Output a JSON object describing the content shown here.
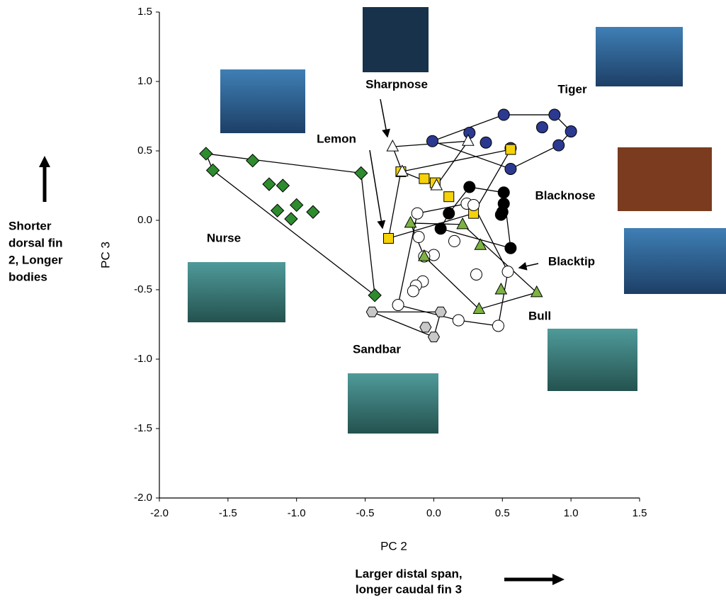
{
  "chart_data": {
    "type": "scatter",
    "xlabel": "PC 2",
    "ylabel": "PC 3",
    "xlim": [
      -2.0,
      1.5
    ],
    "ylim": [
      -2.0,
      1.5
    ],
    "xticks": [
      {
        "value": -2.0,
        "label": "-2.0"
      },
      -1.5,
      {
        "value": -1.0,
        "label": "-1.0"
      },
      -0.5,
      {
        "value": 0.0,
        "label": "0.0"
      },
      0.5,
      {
        "value": 1.0,
        "label": "1.0"
      },
      1.5
    ],
    "yticks": [
      {
        "value": -2.0,
        "label": "-2.0"
      },
      -1.5,
      {
        "value": -1.0,
        "label": "-1.0"
      },
      -0.5,
      {
        "value": 0.0,
        "label": "0.0"
      },
      0.5,
      {
        "value": 1.0,
        "label": "1.0"
      },
      1.5
    ],
    "grid": false,
    "series": [
      {
        "name": "Nurse",
        "marker": "diamond",
        "color": "#2e8b2e",
        "x": [
          -1.66,
          -1.61,
          -1.32,
          -1.2,
          -1.1,
          -1.14,
          -1.0,
          -0.88,
          -1.04,
          -0.53,
          -0.43
        ],
        "values": [
          0.48,
          0.36,
          0.43,
          0.26,
          0.25,
          0.07,
          0.11,
          0.06,
          0.01,
          0.34,
          -0.54
        ]
      },
      {
        "name": "Tiger",
        "marker": "circle",
        "color": "#2b3990",
        "x": [
          -0.01,
          0.26,
          0.38,
          0.51,
          0.56,
          0.56,
          0.79,
          0.88,
          0.91,
          1.0
        ],
        "values": [
          0.57,
          0.63,
          0.56,
          0.76,
          0.37,
          0.52,
          0.67,
          0.76,
          0.54,
          0.64
        ]
      },
      {
        "name": "Lemon",
        "marker": "square",
        "color": "#f5d20a",
        "x": [
          0.56,
          -0.24,
          -0.07,
          0.01,
          0.11,
          0.29,
          -0.33
        ],
        "values": [
          0.51,
          0.35,
          0.3,
          0.27,
          0.17,
          0.05,
          -0.13
        ]
      },
      {
        "name": "Sharpnose",
        "marker": "triangle",
        "color": "#ffffff",
        "x": [
          -0.3,
          -0.23,
          0.02,
          0.25
        ],
        "values": [
          0.53,
          0.35,
          0.25,
          0.57
        ]
      },
      {
        "name": "Blacknose",
        "marker": "circle",
        "color": "#000000",
        "x": [
          0.26,
          0.51,
          0.51,
          0.5,
          0.49,
          0.11,
          0.05,
          0.56
        ],
        "values": [
          0.24,
          0.2,
          0.12,
          0.06,
          0.04,
          0.05,
          -0.06,
          -0.2
        ]
      },
      {
        "name": "Blacktip",
        "marker": "circle",
        "color": "#ffffff",
        "x": [
          -0.12,
          0.24,
          0.29,
          -0.11,
          0.15,
          0.0,
          -0.07,
          -0.08,
          -0.13,
          -0.15,
          0.31,
          0.54,
          -0.26,
          0.18,
          0.47
        ],
        "values": [
          0.05,
          0.12,
          0.11,
          -0.12,
          -0.15,
          -0.25,
          -0.26,
          -0.44,
          -0.47,
          -0.51,
          -0.39,
          -0.37,
          -0.61,
          -0.72,
          -0.76
        ]
      },
      {
        "name": "Bull",
        "marker": "triangle",
        "color": "#7cb342",
        "x": [
          -0.17,
          0.21,
          0.34,
          -0.07,
          0.49,
          0.75,
          0.33
        ],
        "values": [
          -0.02,
          -0.03,
          -0.18,
          -0.26,
          -0.5,
          -0.52,
          -0.64
        ]
      },
      {
        "name": "Sandbar",
        "marker": "hexagon",
        "color": "#c8c8c8",
        "x": [
          -0.45,
          0.05,
          -0.06,
          0.0
        ],
        "values": [
          -0.66,
          -0.66,
          -0.77,
          -0.84
        ]
      }
    ],
    "annotations": {
      "y_direction": [
        "Shorter",
        "dorsal fin",
        "2, Longer",
        "bodies"
      ],
      "x_direction": [
        "Larger distal span,",
        "longer caudal fin 3"
      ]
    }
  }
}
